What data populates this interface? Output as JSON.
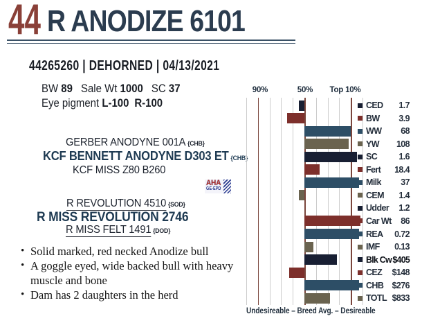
{
  "header": {
    "lot_number": "44",
    "title": "R ANODIZE 6101"
  },
  "registration": "44265260 | DEHORNED | 04/13/2021",
  "stats": {
    "pairs": [
      {
        "label": "BW",
        "value": "89"
      },
      {
        "label": "Sale Wt",
        "value": "1000"
      },
      {
        "label": "SC",
        "value": "37"
      }
    ],
    "eye_pigment_label": "Eye pigment",
    "eye_pigment_left": "L-100",
    "eye_pigment_right": "R-100"
  },
  "pedigree": {
    "sire_of_sire": {
      "name": "GERBER ANODYNE 001A",
      "tag": "{CHB}"
    },
    "sire": {
      "name": "KCF BENNETT ANODYNE D303 ET",
      "tag": "{CHB}"
    },
    "dam_of_sire": {
      "name": "KCF MISS Z80 B260"
    },
    "sire_of_dam": {
      "name": "R REVOLUTION 4510",
      "tag": "{SOD}"
    },
    "dam": {
      "name": "R MISS REVOLUTION 2746"
    },
    "dam_of_dam": {
      "name": "R MISS FELT 1491",
      "tag": "{DOD}"
    }
  },
  "logo": {
    "line1": "AHA",
    "line2": "GE-EPD"
  },
  "bullets": [
    "Solid marked, red necked Anodize bull",
    "A goggle eyed, wide backed bull with heavy muscle and bone",
    "Dam has 2 daughters in the herd"
  ],
  "chart_data": {
    "type": "bar",
    "orientation": "horizontal",
    "title": "EPD percentile chart",
    "axis_labels": [
      "90%",
      "50%",
      "Top 10%"
    ],
    "axis_note": "Percentile scale: left edge 100% (undesirable) to right edge 0% (desirable); bars extend from the 50% breed-average line. Accent gridlines at 90%, 50% and Top 10%.",
    "footer": "Undesireable – Breed Avg. –  Desireable",
    "colors": {
      "navy": "#181f33",
      "red": "#7d2f2b",
      "steel": "#2d4e66",
      "olive": "#6a634f"
    },
    "rows": [
      {
        "trait": "CED",
        "value": "1.7",
        "percentile": 55,
        "color": "navy"
      },
      {
        "trait": "BW",
        "value": "3.9",
        "percentile": 65,
        "color": "red"
      },
      {
        "trait": "WW",
        "value": "68",
        "percentile": 10,
        "color": "steel"
      },
      {
        "trait": "YW",
        "value": "108",
        "percentile": 12,
        "color": "olive"
      },
      {
        "trait": "SC",
        "value": "1.6",
        "percentile": 5,
        "color": "navy"
      },
      {
        "trait": "Fert",
        "value": "18.4",
        "percentile": 37,
        "color": "red"
      },
      {
        "trait": "Milk",
        "value": "37",
        "percentile": 3,
        "color": "steel"
      },
      {
        "trait": "CEM",
        "value": "1.4",
        "percentile": 55,
        "color": "olive"
      },
      {
        "trait": "Udder",
        "value": "1.2",
        "percentile": 50,
        "color": "navy"
      },
      {
        "trait": "Car Wt",
        "value": "86",
        "percentile": 2,
        "color": "red"
      },
      {
        "trait": "REA",
        "value": "0.72",
        "percentile": 3,
        "color": "steel"
      },
      {
        "trait": "IMF",
        "value": "0.13",
        "percentile": 42,
        "color": "olive"
      },
      {
        "trait": "Blk Cw",
        "value": "$405",
        "percentile": 22,
        "color": "navy",
        "bold": true
      },
      {
        "trait": "CEZ",
        "value": "$148",
        "percentile": 63,
        "color": "red"
      },
      {
        "trait": "CHB",
        "value": "$276",
        "percentile": 3,
        "color": "steel"
      },
      {
        "trait": "TOTL",
        "value": "$833",
        "percentile": 28,
        "color": "olive"
      }
    ]
  }
}
